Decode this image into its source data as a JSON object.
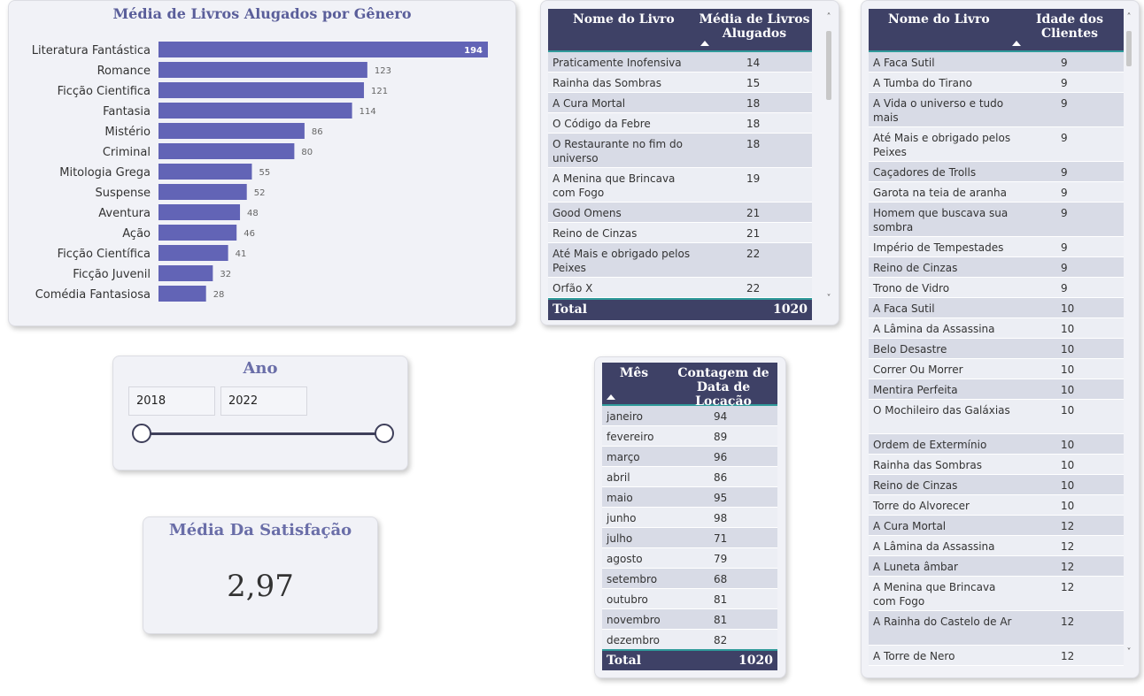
{
  "bar_chart": {
    "title": "Média de Livros Alugados por Gênero",
    "bar_color": "#6264b6"
  },
  "chart_data": {
    "type": "bar",
    "orientation": "horizontal",
    "title": "Média de Livros Alugados por Gênero",
    "categories": [
      "Literatura Fantástica",
      "Romance",
      "Ficção Cientifica",
      "Fantasia",
      "Mistério",
      "Criminal",
      "Mitologia Grega",
      "Suspense",
      "Aventura",
      "Ação",
      "Ficção Científica",
      "Ficção Juvenil",
      "Comédia Fantasiosa"
    ],
    "values": [
      194,
      123,
      121,
      114,
      86,
      80,
      55,
      52,
      48,
      46,
      41,
      32,
      28
    ],
    "xlim": [
      0,
      206
    ],
    "grid": false,
    "data_labels": true
  },
  "books_table": {
    "col1_header": "Nome do Livro",
    "col2_header": "Média de Livros Alugados",
    "rows": [
      {
        "name": "Praticamente Inofensiva",
        "value": "14"
      },
      {
        "name": "Rainha das Sombras",
        "value": "15"
      },
      {
        "name": "A Cura Mortal",
        "value": "18"
      },
      {
        "name": "O Código da Febre",
        "value": "18"
      },
      {
        "name": "O Restaurante no fim do universo",
        "value": "18"
      },
      {
        "name": "A Menina que Brincava com Fogo",
        "value": "19"
      },
      {
        "name": "Good Omens",
        "value": "21"
      },
      {
        "name": "Reino de Cinzas",
        "value": "21"
      },
      {
        "name": "Até Mais e obrigado pelos Peixes",
        "value": "22"
      },
      {
        "name": "Orfão X",
        "value": "22"
      }
    ],
    "total_label": "Total",
    "total_value": "1020"
  },
  "ages_table": {
    "col1_header": "Nome do Livro",
    "col2_header": "Idade dos Clientes",
    "rows": [
      {
        "name": "A Faca Sutil",
        "value": "9"
      },
      {
        "name": "A Tumba do Tirano",
        "value": "9"
      },
      {
        "name": "A Vida o universo e tudo mais",
        "value": "9"
      },
      {
        "name": "Até Mais e obrigado pelos Peixes",
        "value": "9"
      },
      {
        "name": "Caçadores de Trolls",
        "value": "9"
      },
      {
        "name": "Garota na teia de aranha",
        "value": "9"
      },
      {
        "name": "Homem que buscava sua sombra",
        "value": "9"
      },
      {
        "name": "Império de Tempestades",
        "value": "9"
      },
      {
        "name": "Reino de Cinzas",
        "value": "9"
      },
      {
        "name": "Trono de Vidro",
        "value": "9"
      },
      {
        "name": "A Faca Sutil",
        "value": "10"
      },
      {
        "name": "A Lâmina da Assassina",
        "value": "10"
      },
      {
        "name": "Belo Desastre",
        "value": "10"
      },
      {
        "name": "Correr Ou Morrer",
        "value": "10"
      },
      {
        "name": "Mentira Perfeita",
        "value": "10"
      },
      {
        "name": "O Mochileiro das Galáxias",
        "value": "10"
      },
      {
        "name": "Ordem de Extermínio",
        "value": "10"
      },
      {
        "name": "Rainha das Sombras",
        "value": "10"
      },
      {
        "name": "Reino de Cinzas",
        "value": "10"
      },
      {
        "name": "Torre do Alvorecer",
        "value": "10"
      },
      {
        "name": "A Cura Mortal",
        "value": "12"
      },
      {
        "name": "A Lâmina da Assassina",
        "value": "12"
      },
      {
        "name": "A Luneta âmbar",
        "value": "12"
      },
      {
        "name": "A Menina que Brincava com Fogo",
        "value": "12"
      },
      {
        "name": "A Rainha do Castelo de Ar",
        "value": "12"
      },
      {
        "name": "A Torre de Nero",
        "value": "12"
      }
    ]
  },
  "months_table": {
    "col1_header": "Mês",
    "col2_header": "Contagem de Data de Locação",
    "rows": [
      {
        "name": "janeiro",
        "value": "94"
      },
      {
        "name": "fevereiro",
        "value": "89"
      },
      {
        "name": "março",
        "value": "96"
      },
      {
        "name": "abril",
        "value": "86"
      },
      {
        "name": "maio",
        "value": "95"
      },
      {
        "name": "junho",
        "value": "98"
      },
      {
        "name": "julho",
        "value": "71"
      },
      {
        "name": "agosto",
        "value": "79"
      },
      {
        "name": "setembro",
        "value": "68"
      },
      {
        "name": "outubro",
        "value": "81"
      },
      {
        "name": "novembro",
        "value": "81"
      },
      {
        "name": "dezembro",
        "value": "82"
      }
    ],
    "total_label": "Total",
    "total_value": "1020"
  },
  "year_slicer": {
    "title": "Ano",
    "start": "2018",
    "end": "2022"
  },
  "kpi": {
    "title": "Média Da Satisfação",
    "value": "2,97"
  },
  "scroll_icons": {
    "up": "˄",
    "down": "˅"
  },
  "colors": {
    "header_bg": "#3e4166",
    "row_a": "#d8dbe6",
    "row_b": "#eceef4",
    "accent_line": "#2f9a9a",
    "title_text": "#6a6ea8"
  }
}
